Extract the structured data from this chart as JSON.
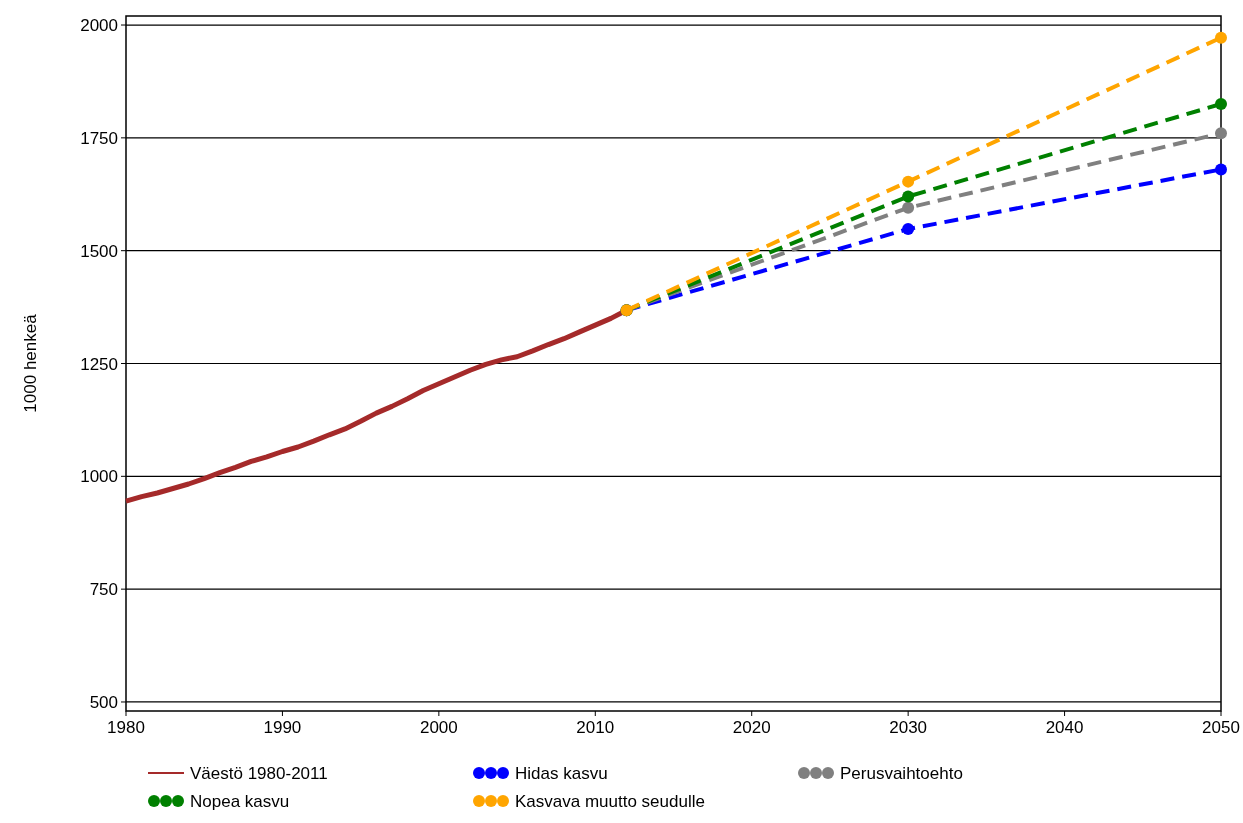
{
  "chart_data": {
    "type": "line",
    "ylabel": "1000 henkeä",
    "xlim": [
      1980,
      2050
    ],
    "xticks": [
      1980,
      1990,
      2000,
      2010,
      2020,
      2030,
      2040,
      2050
    ],
    "ylim": [
      480,
      2020
    ],
    "yticks": [
      500,
      750,
      1000,
      1250,
      1500,
      1750,
      2000
    ],
    "grid": "y",
    "legend": "bottom",
    "series": [
      {
        "name": "Väestö 1980-2011",
        "color": "#a52a2a",
        "line_style": "solid",
        "marker": "none",
        "x": [
          1980,
          1981,
          1982,
          1983,
          1984,
          1985,
          1986,
          1987,
          1988,
          1989,
          1990,
          1991,
          1992,
          1993,
          1994,
          1995,
          1996,
          1997,
          1998,
          1999,
          2000,
          2001,
          2002,
          2003,
          2004,
          2005,
          2006,
          2007,
          2008,
          2009,
          2010,
          2011,
          2012
        ],
        "values": [
          945,
          955,
          963,
          973,
          983,
          995,
          1008,
          1020,
          1033,
          1043,
          1055,
          1065,
          1078,
          1092,
          1105,
          1122,
          1140,
          1155,
          1172,
          1190,
          1205,
          1220,
          1235,
          1248,
          1258,
          1265,
          1278,
          1292,
          1305,
          1320,
          1335,
          1350,
          1368
        ]
      },
      {
        "name": "Hidas kasvu",
        "color": "#0000ff",
        "line_style": "dashed",
        "marker": "circle",
        "x": [
          2012,
          2030,
          2050
        ],
        "values": [
          1368,
          1548,
          1680
        ]
      },
      {
        "name": "Perusvaihtoehto",
        "color": "#808080",
        "line_style": "dashed",
        "marker": "circle",
        "x": [
          2012,
          2030,
          2050
        ],
        "values": [
          1368,
          1595,
          1760
        ]
      },
      {
        "name": "Nopea kasvu",
        "color": "#008000",
        "line_style": "dashed",
        "marker": "circle",
        "x": [
          2012,
          2030,
          2050
        ],
        "values": [
          1368,
          1620,
          1825
        ]
      },
      {
        "name": "Kasvava muutto seudulle",
        "color": "#ffa500",
        "line_style": "dashed",
        "marker": "circle",
        "x": [
          2012,
          2030,
          2050
        ],
        "values": [
          1368,
          1653,
          1972
        ]
      }
    ]
  }
}
